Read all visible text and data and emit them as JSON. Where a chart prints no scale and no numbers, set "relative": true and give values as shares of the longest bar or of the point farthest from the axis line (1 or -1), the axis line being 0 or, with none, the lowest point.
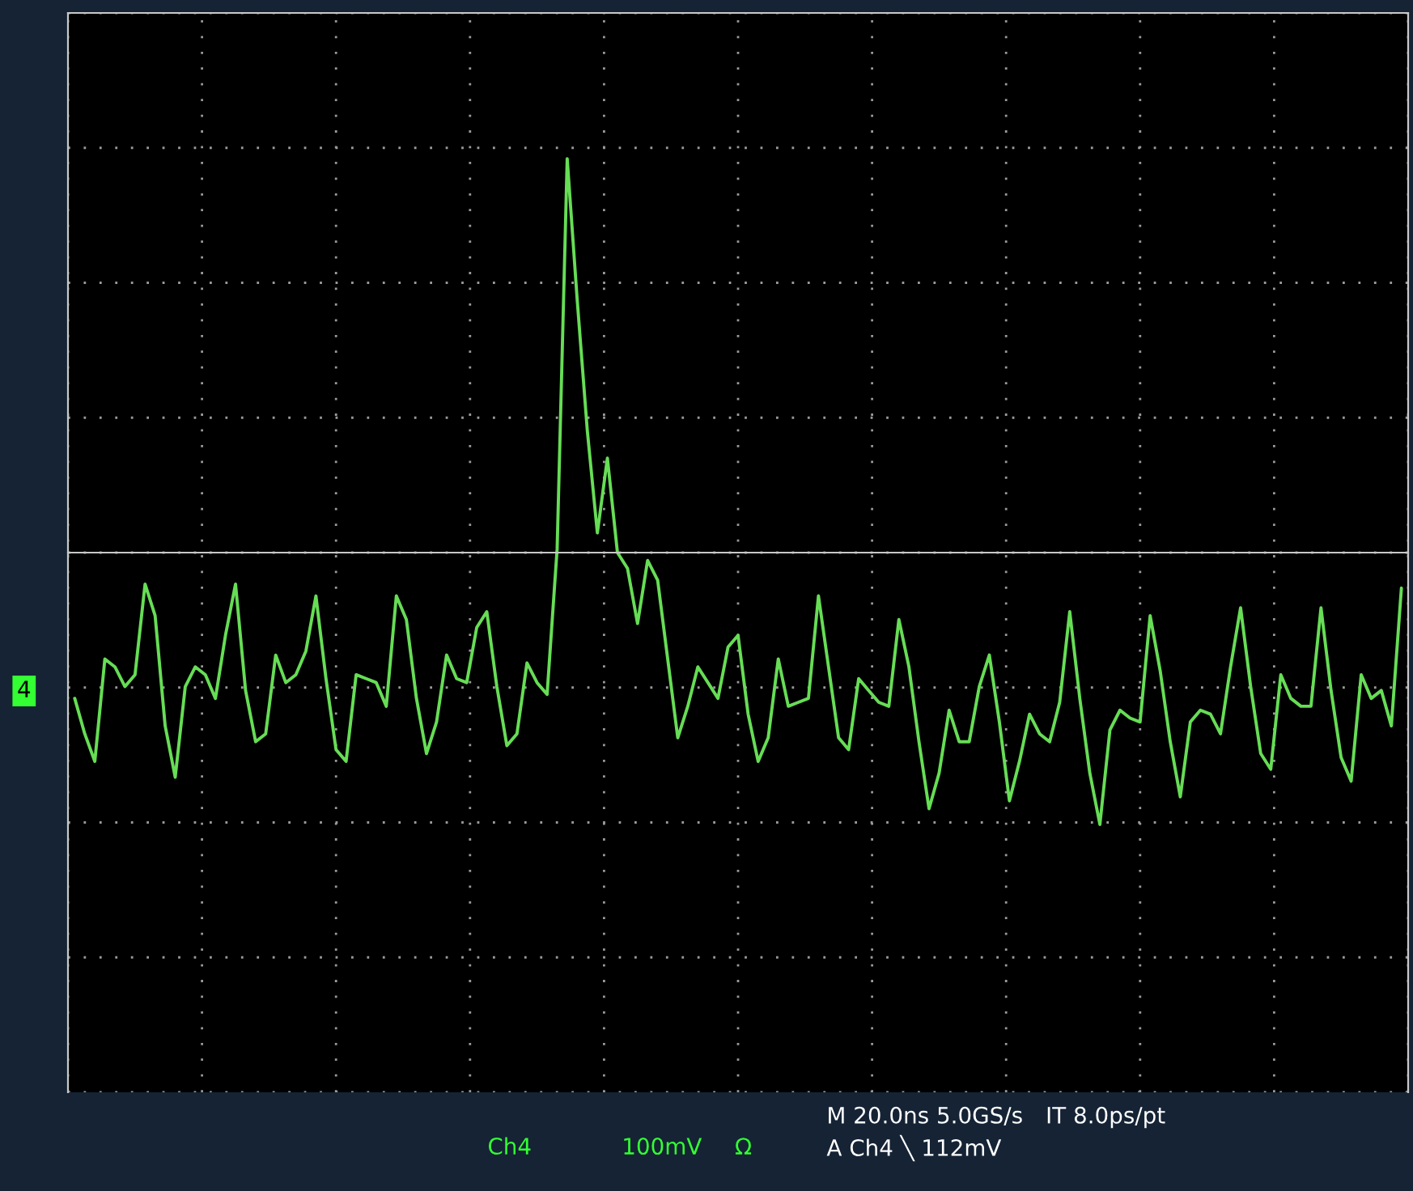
{
  "chart_data": {
    "type": "line",
    "relative": true,
    "grid": true,
    "marker": "none",
    "line_style": "solid",
    "categories": [
      null,
      null,
      null,
      null,
      null,
      null,
      null,
      null,
      null,
      null,
      null,
      null,
      null,
      null,
      null,
      null,
      null,
      null,
      null,
      null,
      null,
      null,
      null,
      null,
      null,
      null,
      null,
      null,
      null,
      null,
      null,
      null,
      null,
      null,
      null,
      null,
      null,
      null,
      null,
      null,
      null,
      null,
      null,
      null,
      null,
      null,
      null,
      null,
      null,
      null,
      null,
      null,
      null,
      null,
      null,
      null,
      null,
      null,
      null,
      null,
      null,
      null,
      null,
      null,
      null,
      null,
      null,
      null,
      null,
      null,
      null,
      null,
      null,
      null,
      null,
      null,
      null,
      null,
      null,
      null,
      null,
      null,
      null,
      null,
      null,
      null,
      null,
      null,
      null,
      null,
      null,
      null,
      null,
      null,
      null,
      null,
      null,
      null,
      null,
      null,
      null,
      null,
      null,
      null,
      null,
      null,
      null,
      null,
      null,
      null,
      null,
      null,
      null,
      null,
      null,
      null,
      null,
      null,
      null,
      null,
      null,
      null,
      null,
      null,
      null,
      null,
      null,
      null,
      null,
      null,
      null,
      null,
      null
    ],
    "annotations": [
      "Ch4",
      "100mV",
      "Ω",
      "M 20.0ns 5.0GS/s",
      "A Ch4 ╲ 112mV",
      "IT 8.0ps/pt",
      "4"
    ],
    "series": [
      {
        "color": "#66dd55",
        "values": [
          -0.37,
          -0.46,
          -0.53,
          -0.27,
          -0.29,
          -0.34,
          -0.31,
          -0.08,
          -0.16,
          -0.44,
          -0.57,
          -0.34,
          -0.29,
          -0.31,
          -0.37,
          -0.21,
          -0.08,
          -0.35,
          -0.48,
          -0.46,
          -0.26,
          -0.33,
          -0.31,
          -0.25,
          -0.11,
          -0.32,
          -0.5,
          -0.53,
          -0.31,
          -0.32,
          -0.33,
          -0.39,
          -0.11,
          -0.17,
          -0.37,
          -0.51,
          -0.43,
          -0.26,
          -0.32,
          -0.33,
          -0.19,
          -0.15,
          -0.34,
          -0.49,
          -0.46,
          -0.28,
          -0.33,
          -0.36,
          0.01,
          1.0,
          0.64,
          0.31,
          0.05,
          0.24,
          0.0,
          -0.04,
          -0.18,
          -0.02,
          -0.07,
          -0.27,
          -0.47,
          -0.39,
          -0.29,
          -0.33,
          -0.37,
          -0.24,
          -0.21,
          -0.41,
          -0.53,
          -0.47,
          -0.27,
          -0.39,
          -0.38,
          -0.37,
          -0.11,
          -0.29,
          -0.47,
          -0.5,
          -0.32,
          -0.35,
          -0.38,
          -0.39,
          -0.17,
          -0.29,
          -0.48,
          -0.65,
          -0.56,
          -0.4,
          -0.48,
          -0.48,
          -0.34,
          -0.26,
          -0.43,
          -0.63,
          -0.53,
          -0.41,
          -0.46,
          -0.48,
          -0.38,
          -0.15,
          -0.37,
          -0.56,
          -0.69,
          -0.45,
          -0.4,
          -0.42,
          -0.43,
          -0.16,
          -0.3,
          -0.48,
          -0.62,
          -0.43,
          -0.4,
          -0.41,
          -0.46,
          -0.29,
          -0.14,
          -0.34,
          -0.51,
          -0.55,
          -0.31,
          -0.37,
          -0.39,
          -0.39,
          -0.14,
          -0.35,
          -0.52,
          -0.58,
          -0.31,
          -0.37,
          -0.35,
          -0.44,
          -0.09
        ]
      }
    ]
  }
}
